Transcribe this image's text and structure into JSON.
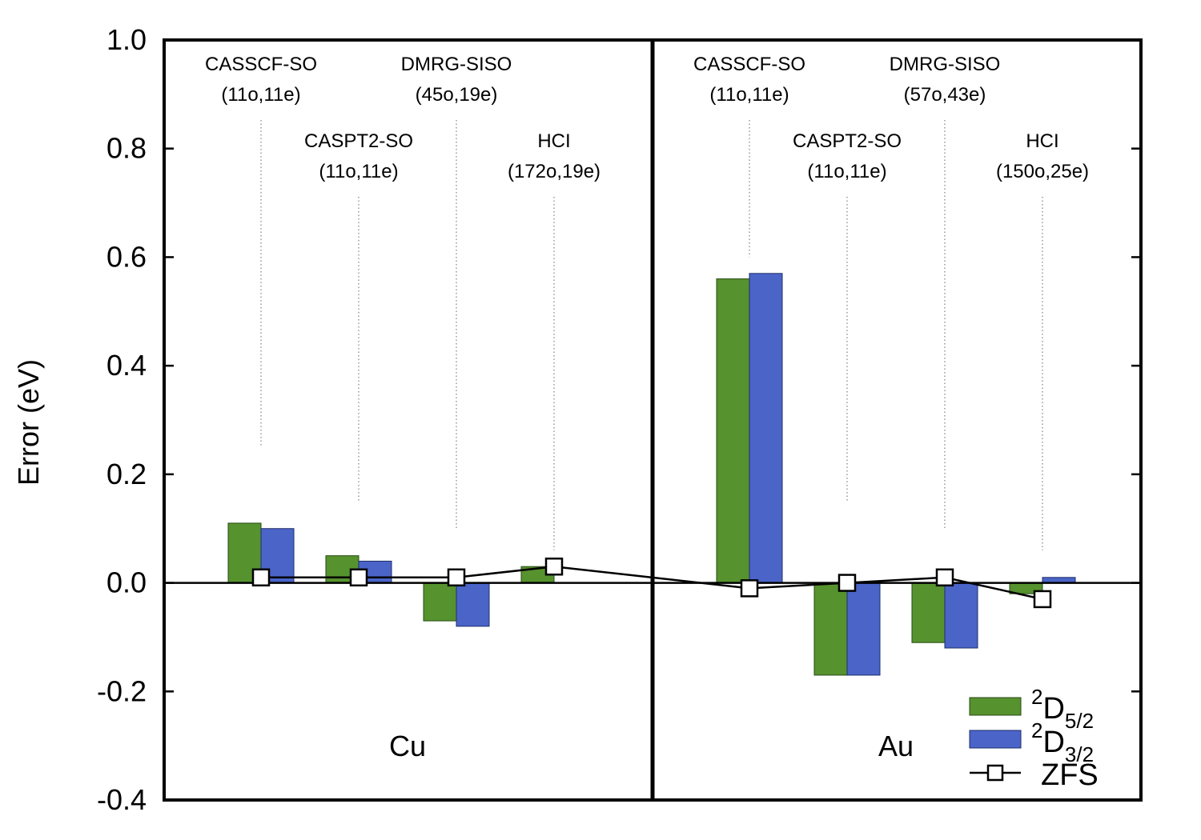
{
  "chart_data": {
    "type": "bar",
    "ylabel": "Error (eV)",
    "ylim": [
      -0.4,
      1.0
    ],
    "yticks": [
      "1.0",
      "0.8",
      "0.6",
      "0.4",
      "0.2",
      "0.0",
      "-0.2",
      "-0.4"
    ],
    "legend": {
      "position": "bottom-right",
      "entries": [
        {
          "sup": "2",
          "base": "D",
          "sub": "5/2"
        },
        {
          "sup": "2",
          "base": "D",
          "sub": "3/2"
        },
        {
          "text": "ZFS"
        }
      ]
    },
    "colors": {
      "d52": "#56922e",
      "d32": "#4a64c8",
      "zfs": "#000000"
    },
    "panels": [
      {
        "element": "Cu",
        "methods": [
          {
            "name": "CASSCF-SO",
            "space": "(11o,11e)",
            "d52": 0.11,
            "d32": 0.1,
            "zfs": 0.01
          },
          {
            "name": "CASPT2-SO",
            "space": "(11o,11e)",
            "d52": 0.05,
            "d32": 0.04,
            "zfs": 0.01
          },
          {
            "name": "DMRG-SISO",
            "space": "(45o,19e)",
            "d52": -0.07,
            "d32": -0.08,
            "zfs": 0.01
          },
          {
            "name": "HCI",
            "space": "(172o,19e)",
            "d52": 0.03,
            "d32": 0.0,
            "zfs": 0.03
          }
        ]
      },
      {
        "element": "Au",
        "methods": [
          {
            "name": "CASSCF-SO",
            "space": "(11o,11e)",
            "d52": 0.56,
            "d32": 0.57,
            "zfs": -0.01
          },
          {
            "name": "CASPT2-SO",
            "space": "(11o,11e)",
            "d52": -0.17,
            "d32": -0.17,
            "zfs": 0.0
          },
          {
            "name": "DMRG-SISO",
            "space": "(57o,43e)",
            "d52": -0.11,
            "d32": -0.12,
            "zfs": 0.01
          },
          {
            "name": "HCI",
            "space": "(150o,25e)",
            "d52": -0.02,
            "d32": 0.01,
            "zfs": -0.03
          }
        ]
      }
    ]
  }
}
